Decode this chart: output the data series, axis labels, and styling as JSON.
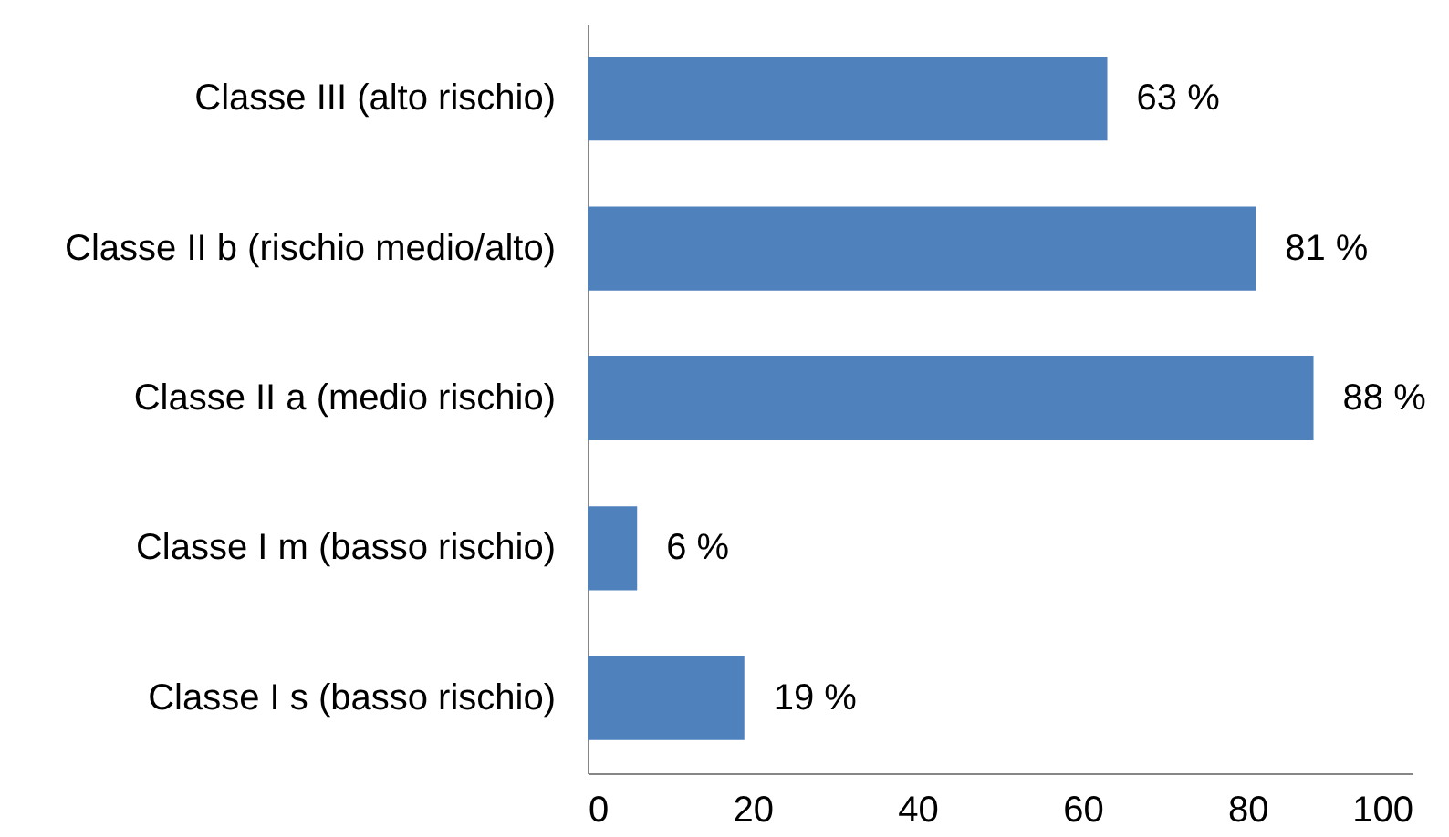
{
  "chart_data": {
    "type": "bar",
    "orientation": "horizontal",
    "categories": [
      "Classe III (alto rischio)",
      "Classe II b (rischio medio/alto)",
      "Classe II a (medio rischio)",
      "Classe I m (basso rischio)",
      "Classe I s (basso rischio)"
    ],
    "values": [
      63,
      81,
      88,
      6,
      19
    ],
    "color": "#4f81bd",
    "xlim": [
      0,
      100
    ],
    "xticks": [
      0,
      20,
      40,
      60,
      80,
      100
    ],
    "value_labels": [
      "63 %",
      "81 %",
      "88 %",
      "6 %",
      "19 %"
    ]
  }
}
